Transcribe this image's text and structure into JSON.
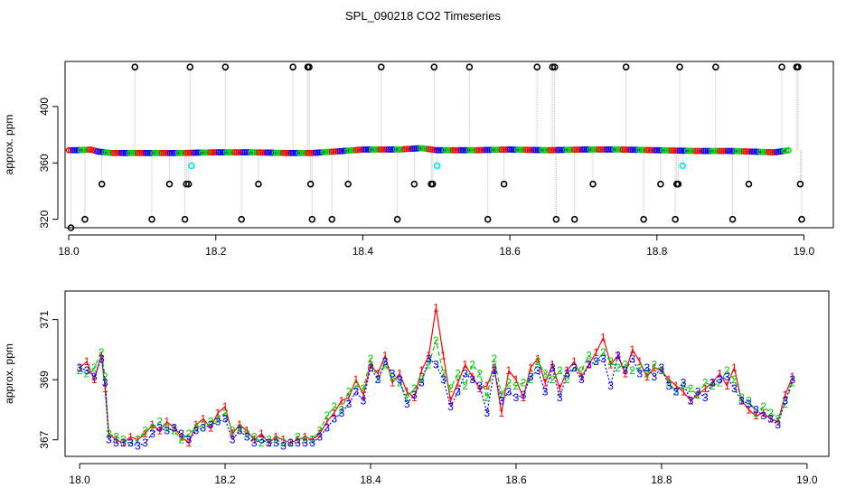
{
  "title": "SPL_090218  CO2 Timeseries",
  "colors": {
    "s1": "#ff0000",
    "s2": "#00cd00",
    "s3": "#0000ff",
    "outlier": "#000000",
    "flagged": "#00e5ee",
    "guide": "#bebebe",
    "frame": "#000000"
  },
  "chart_data": [
    {
      "type": "scatter",
      "title": "SPL_090218  CO2 Timeseries",
      "xlabel": "",
      "ylabel": "approx. ppm",
      "xlim": [
        17.995,
        19.04
      ],
      "ylim": [
        314,
        432
      ],
      "xticks": [
        18.0,
        18.2,
        18.4,
        18.6,
        18.8,
        19.0
      ],
      "xtick_labels": [
        "18.0",
        "18.2",
        "18.4",
        "18.6",
        "18.8",
        "19.0"
      ],
      "yticks": [
        320,
        360,
        400
      ],
      "ytick_labels": [
        "320",
        "360",
        "400"
      ],
      "baseline": [
        [
          18.0,
          369
        ],
        [
          18.01,
          369
        ],
        [
          18.03,
          369.5
        ],
        [
          18.04,
          368
        ],
        [
          18.06,
          367
        ],
        [
          18.1,
          367
        ],
        [
          18.15,
          367
        ],
        [
          18.2,
          367.5
        ],
        [
          18.25,
          367.5
        ],
        [
          18.3,
          367
        ],
        [
          18.33,
          367
        ],
        [
          18.36,
          368
        ],
        [
          18.4,
          369.5
        ],
        [
          18.45,
          369.5
        ],
        [
          18.48,
          370.5
        ],
        [
          18.5,
          369
        ],
        [
          18.55,
          369
        ],
        [
          18.6,
          369.5
        ],
        [
          18.65,
          369
        ],
        [
          18.7,
          369.5
        ],
        [
          18.75,
          369.5
        ],
        [
          18.8,
          369
        ],
        [
          18.85,
          368.5
        ],
        [
          18.9,
          368.5
        ],
        [
          18.93,
          368
        ],
        [
          18.96,
          367.5
        ],
        [
          18.98,
          369
        ]
      ],
      "outliers": [
        {
          "x": 18.003,
          "y": 314
        },
        {
          "x": 18.022,
          "y": 320
        },
        {
          "x": 18.045,
          "y": 345
        },
        {
          "x": 18.09,
          "y": 428
        },
        {
          "x": 18.113,
          "y": 320
        },
        {
          "x": 18.137,
          "y": 345
        },
        {
          "x": 18.158,
          "y": 320
        },
        {
          "x": 18.16,
          "y": 345
        },
        {
          "x": 18.163,
          "y": 345
        },
        {
          "x": 18.165,
          "y": 428
        },
        {
          "x": 18.213,
          "y": 428
        },
        {
          "x": 18.235,
          "y": 320
        },
        {
          "x": 18.258,
          "y": 345
        },
        {
          "x": 18.305,
          "y": 428
        },
        {
          "x": 18.325,
          "y": 428
        },
        {
          "x": 18.327,
          "y": 428
        },
        {
          "x": 18.329,
          "y": 345
        },
        {
          "x": 18.331,
          "y": 320
        },
        {
          "x": 18.358,
          "y": 320
        },
        {
          "x": 18.38,
          "y": 345
        },
        {
          "x": 18.425,
          "y": 428
        },
        {
          "x": 18.447,
          "y": 320
        },
        {
          "x": 18.47,
          "y": 345
        },
        {
          "x": 18.493,
          "y": 345
        },
        {
          "x": 18.495,
          "y": 345
        },
        {
          "x": 18.497,
          "y": 428
        },
        {
          "x": 18.545,
          "y": 428
        },
        {
          "x": 18.57,
          "y": 320
        },
        {
          "x": 18.592,
          "y": 345
        },
        {
          "x": 18.637,
          "y": 428
        },
        {
          "x": 18.658,
          "y": 428
        },
        {
          "x": 18.661,
          "y": 428
        },
        {
          "x": 18.663,
          "y": 320
        },
        {
          "x": 18.688,
          "y": 320
        },
        {
          "x": 18.713,
          "y": 345
        },
        {
          "x": 18.758,
          "y": 428
        },
        {
          "x": 18.782,
          "y": 320
        },
        {
          "x": 18.805,
          "y": 345
        },
        {
          "x": 18.825,
          "y": 320
        },
        {
          "x": 18.827,
          "y": 345
        },
        {
          "x": 18.829,
          "y": 345
        },
        {
          "x": 18.831,
          "y": 428
        },
        {
          "x": 18.88,
          "y": 428
        },
        {
          "x": 18.903,
          "y": 320
        },
        {
          "x": 18.925,
          "y": 345
        },
        {
          "x": 18.97,
          "y": 428
        },
        {
          "x": 18.99,
          "y": 428
        },
        {
          "x": 18.992,
          "y": 428
        },
        {
          "x": 18.995,
          "y": 345
        },
        {
          "x": 18.997,
          "y": 320
        }
      ],
      "flagged": [
        {
          "x": 18.167,
          "y": 358
        },
        {
          "x": 18.501,
          "y": 358
        },
        {
          "x": 18.835,
          "y": 358
        }
      ]
    },
    {
      "type": "line",
      "xlabel": "",
      "ylabel": "approx. ppm",
      "xlim": [
        17.98,
        19.03
      ],
      "ylim": [
        366.45,
        371.95
      ],
      "xticks": [
        18.0,
        18.2,
        18.4,
        18.6,
        18.8,
        19.0
      ],
      "xtick_labels": [
        "18.0",
        "18.2",
        "18.4",
        "18.6",
        "18.8",
        "19.0"
      ],
      "yticks": [
        367,
        369,
        371
      ],
      "ytick_labels": [
        "367",
        "369",
        "371"
      ],
      "x": [
        18.0,
        18.01,
        18.02,
        18.03,
        18.035,
        18.04,
        18.05,
        18.06,
        18.07,
        18.08,
        18.09,
        18.1,
        18.11,
        18.12,
        18.13,
        18.14,
        18.15,
        18.16,
        18.17,
        18.18,
        18.19,
        18.2,
        18.21,
        18.22,
        18.23,
        18.24,
        18.25,
        18.26,
        18.27,
        18.28,
        18.29,
        18.3,
        18.31,
        18.32,
        18.33,
        18.34,
        18.35,
        18.36,
        18.37,
        18.38,
        18.39,
        18.4,
        18.41,
        18.42,
        18.43,
        18.44,
        18.45,
        18.46,
        18.47,
        18.48,
        18.49,
        18.5,
        18.51,
        18.52,
        18.53,
        18.54,
        18.55,
        18.56,
        18.57,
        18.58,
        18.59,
        18.6,
        18.61,
        18.62,
        18.63,
        18.64,
        18.65,
        18.66,
        18.67,
        18.68,
        18.69,
        18.7,
        18.71,
        18.72,
        18.73,
        18.74,
        18.75,
        18.76,
        18.77,
        18.78,
        18.79,
        18.8,
        18.81,
        18.82,
        18.83,
        18.84,
        18.85,
        18.86,
        18.87,
        18.88,
        18.89,
        18.9,
        18.91,
        18.92,
        18.93,
        18.94,
        18.95,
        18.96,
        18.97,
        18.98
      ],
      "series": [
        {
          "name": "1",
          "color": "#ff0000",
          "values": [
            369.4,
            369.6,
            369.0,
            369.8,
            368.7,
            367.2,
            367.0,
            366.9,
            367.1,
            367.0,
            367.2,
            367.5,
            367.3,
            367.6,
            367.4,
            367.1,
            366.9,
            367.5,
            367.7,
            367.4,
            367.9,
            368.1,
            367.2,
            367.5,
            367.3,
            367.0,
            367.2,
            366.9,
            367.1,
            367.0,
            366.9,
            367.0,
            367.1,
            367.0,
            367.2,
            367.6,
            367.9,
            368.3,
            368.4,
            369.0,
            368.5,
            369.5,
            369.2,
            369.8,
            368.9,
            369.2,
            368.6,
            368.4,
            369.3,
            369.8,
            371.4,
            369.8,
            368.3,
            368.9,
            369.5,
            369.1,
            368.7,
            368.8,
            369.4,
            367.9,
            369.3,
            369.0,
            368.4,
            369.4,
            369.7,
            368.9,
            369.5,
            368.7,
            369.3,
            369.6,
            369.1,
            369.5,
            369.9,
            370.4,
            369.5,
            369.8,
            369.2,
            370.0,
            369.6,
            369.1,
            369.4,
            369.3,
            369.0,
            368.8,
            368.6,
            368.3,
            368.5,
            368.7,
            368.9,
            369.2,
            368.8,
            369.4,
            368.3,
            368.0,
            367.8,
            367.9,
            367.7,
            367.6,
            368.5,
            369.1
          ]
        },
        {
          "name": "2",
          "color": "#00cd00",
          "values": [
            369.3,
            369.2,
            369.4,
            369.9,
            369.1,
            367.2,
            367.1,
            367.0,
            366.9,
            367.0,
            367.3,
            367.4,
            367.6,
            367.4,
            367.3,
            367.0,
            367.2,
            367.4,
            367.5,
            367.6,
            367.7,
            367.9,
            367.3,
            367.4,
            367.2,
            367.1,
            366.9,
            367.0,
            367.0,
            366.9,
            366.9,
            367.1,
            367.0,
            367.0,
            367.3,
            367.8,
            368.1,
            368.0,
            368.6,
            368.8,
            368.7,
            369.7,
            369.0,
            369.5,
            369.1,
            368.9,
            368.4,
            368.7,
            369.0,
            369.5,
            370.3,
            369.2,
            368.7,
            369.2,
            368.8,
            369.5,
            369.2,
            368.4,
            369.7,
            368.5,
            368.9,
            368.8,
            368.9,
            369.0,
            369.6,
            369.2,
            369.0,
            369.3,
            369.0,
            369.4,
            369.3,
            369.8,
            369.6,
            369.9,
            369.6,
            369.4,
            369.5,
            369.3,
            369.4,
            369.2,
            369.5,
            369.3,
            368.9,
            368.6,
            368.8,
            368.7,
            368.5,
            368.9,
            368.8,
            368.9,
            369.3,
            369.0,
            368.4,
            368.3,
            367.9,
            368.1,
            367.9,
            367.7,
            368.2,
            368.9
          ]
        },
        {
          "name": "3",
          "color": "#0000ff",
          "values": [
            369.4,
            369.3,
            369.1,
            369.7,
            368.9,
            367.0,
            366.9,
            366.9,
            366.9,
            366.8,
            366.9,
            367.2,
            367.4,
            367.3,
            367.4,
            367.2,
            367.0,
            367.3,
            367.4,
            367.5,
            367.6,
            367.7,
            367.0,
            367.3,
            367.1,
            366.9,
            367.0,
            366.9,
            366.9,
            366.8,
            366.9,
            366.9,
            366.9,
            366.9,
            367.1,
            367.4,
            367.7,
            367.9,
            368.2,
            368.6,
            368.3,
            369.4,
            369.0,
            369.6,
            369.2,
            369.0,
            368.2,
            368.5,
            368.9,
            369.7,
            369.5,
            369.0,
            368.1,
            368.6,
            369.2,
            369.0,
            368.8,
            367.9,
            369.3,
            368.3,
            368.6,
            368.4,
            368.5,
            369.1,
            369.3,
            368.6,
            369.4,
            368.4,
            369.2,
            369.4,
            369.0,
            369.5,
            369.6,
            369.7,
            368.8,
            369.8,
            369.3,
            369.7,
            369.2,
            369.4,
            369.1,
            369.4,
            368.8,
            368.6,
            368.9,
            368.3,
            368.6,
            368.4,
            368.9,
            369.0,
            369.1,
            368.7,
            368.3,
            368.2,
            368.0,
            367.8,
            367.7,
            367.5,
            368.3,
            369.0
          ]
        }
      ]
    }
  ]
}
